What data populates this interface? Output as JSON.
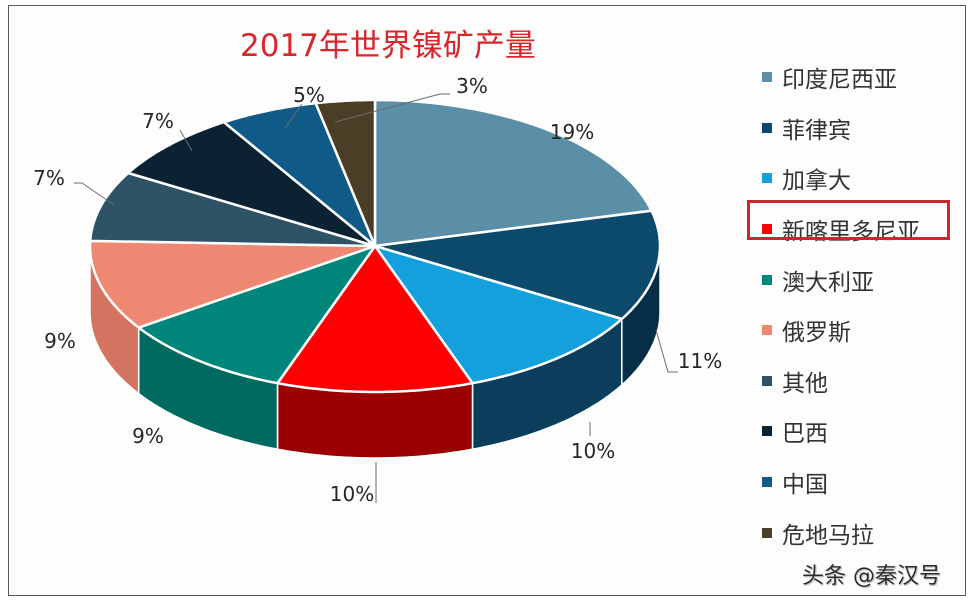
{
  "title": "2017年世界镍矿产量",
  "legend": {
    "items": [
      {
        "label": "印度尼西亚",
        "color": "#5b8fa8"
      },
      {
        "label": "菲律宾",
        "color": "#0b4a6b"
      },
      {
        "label": "加拿大",
        "color": "#14a0dc"
      },
      {
        "label": "新喀里多尼亚",
        "color": "#ff0000"
      },
      {
        "label": "澳大利亚",
        "color": "#00857a"
      },
      {
        "label": "俄罗斯",
        "color": "#ee8872"
      },
      {
        "label": "其他",
        "color": "#2f5366"
      },
      {
        "label": "巴西",
        "color": "#0b2233"
      },
      {
        "label": "中国",
        "color": "#0f5a86"
      },
      {
        "label": "危地马拉",
        "color": "#4a3f26"
      }
    ],
    "highlighted": "新喀里多尼亚",
    "highlight_color": "#c8282e"
  },
  "watermark": "头条 @秦汉号",
  "chart_data": {
    "type": "pie",
    "title": "2017年世界镍矿产量",
    "categories": [
      "印度尼西亚",
      "菲律宾",
      "加拿大",
      "新喀里多尼亚",
      "澳大利亚",
      "俄罗斯",
      "其他",
      "巴西",
      "中国",
      "危地马拉"
    ],
    "values": [
      19,
      11,
      10,
      10,
      9,
      9,
      7,
      7,
      5,
      3
    ],
    "labels": [
      "19%",
      "11%",
      "10%",
      "10%",
      "9%",
      "9%",
      "7%",
      "7%",
      "5%",
      "3%"
    ],
    "colors": [
      "#5b8fa8",
      "#0b4a6b",
      "#14a0dc",
      "#ff0000",
      "#00857a",
      "#ee8872",
      "#2f5366",
      "#0b2233",
      "#0f5a86",
      "#4a3f26"
    ],
    "side_colors": [
      "#47738a",
      "#062f47",
      "#0a3e5c",
      "#9b0000",
      "#006a60",
      "#d4735f",
      "#243f4e",
      "#06141f",
      "#0a4468",
      "#352d1a"
    ],
    "style": "3d",
    "start_angle": "12 o'clock, clockwise",
    "legend_position": "right"
  }
}
